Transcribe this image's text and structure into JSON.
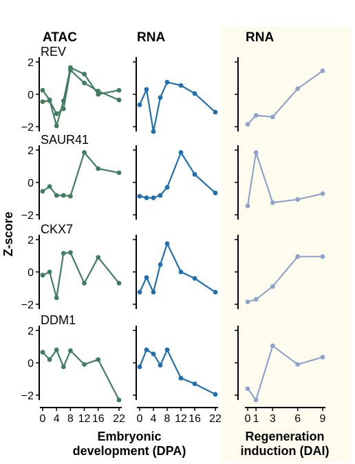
{
  "headers": {
    "atac": "ATAC",
    "rna_embryo": "RNA",
    "rna_regen": "RNA"
  },
  "ylabel": "Z-score",
  "xlabel_embryo": [
    "Embryonic",
    "development (DPA)"
  ],
  "xlabel_regen": [
    "Regeneration",
    "induction (DAI)"
  ],
  "y_ticks": [
    "2",
    "0",
    "−2"
  ],
  "x_ticks_embryo": [
    "0",
    "4",
    "8",
    "12",
    "16",
    "22"
  ],
  "x_ticks_regen": [
    "0",
    "1",
    "3",
    "6",
    "9"
  ],
  "colors": {
    "atac": "#3f7d5f",
    "rna_embryo": "#1f6fb0",
    "rna_regen": "#8ea4cc",
    "regen_bg": "#fdfcee"
  },
  "chart_data": {
    "type": "line",
    "ylim": [
      -2.3,
      2.3
    ],
    "x_embryo": [
      0,
      2,
      4,
      6,
      8,
      12,
      16,
      22
    ],
    "x_regen": [
      0,
      1,
      3,
      6,
      9
    ],
    "genes": [
      {
        "name": "REV",
        "atac": [
          {
            "name": "",
            "values": [
              0.25,
              -0.35,
              -1.95,
              -0.4,
              1.65,
              1.25,
              0.0,
              0.25
            ]
          },
          {
            "name": "",
            "values": [
              -0.45,
              -0.4,
              -1.2,
              -0.9,
              1.5,
              0.7,
              0.2,
              -0.35
            ]
          }
        ],
        "rna_embryo": [
          -0.65,
          0.3,
          -2.3,
          -0.2,
          0.75,
          0.55,
          0.05,
          -1.1
        ],
        "rna_regen": [
          -1.85,
          -1.3,
          -1.4,
          0.35,
          1.45
        ]
      },
      {
        "name": "SAUR41",
        "atac": [
          {
            "name": "",
            "values": [
              -0.55,
              -0.25,
              -0.8,
              -0.8,
              -0.85,
              1.85,
              0.85,
              0.6
            ]
          }
        ],
        "rna_embryo": [
          -0.85,
          -0.95,
          -0.95,
          -0.8,
          -0.3,
          1.85,
          0.5,
          -0.65
        ],
        "rna_regen": [
          -1.45,
          1.85,
          -1.25,
          -1.05,
          -0.7
        ]
      },
      {
        "name": "CKX7",
        "atac": [
          {
            "name": "",
            "values": [
              -0.2,
              0.0,
              -1.6,
              1.15,
              1.2,
              -0.7,
              0.9,
              -0.7
            ]
          }
        ],
        "rna_embryo": [
          -1.25,
          -0.35,
          -1.25,
          0.45,
          1.75,
          0.0,
          -0.4,
          -1.25
        ],
        "rna_regen": [
          -1.85,
          -1.7,
          -0.9,
          0.95,
          0.95
        ]
      },
      {
        "name": "DDM1",
        "atac": [
          {
            "name": "",
            "values": [
              0.65,
              0.2,
              0.8,
              -0.25,
              0.75,
              -0.1,
              0.2,
              -2.3
            ]
          }
        ],
        "rna_embryo": [
          -0.25,
          0.8,
          0.55,
          -0.15,
          0.8,
          -0.95,
          -1.3,
          -1.95
        ],
        "rna_regen": [
          -1.6,
          -2.3,
          1.05,
          -0.1,
          0.35
        ]
      }
    ]
  }
}
